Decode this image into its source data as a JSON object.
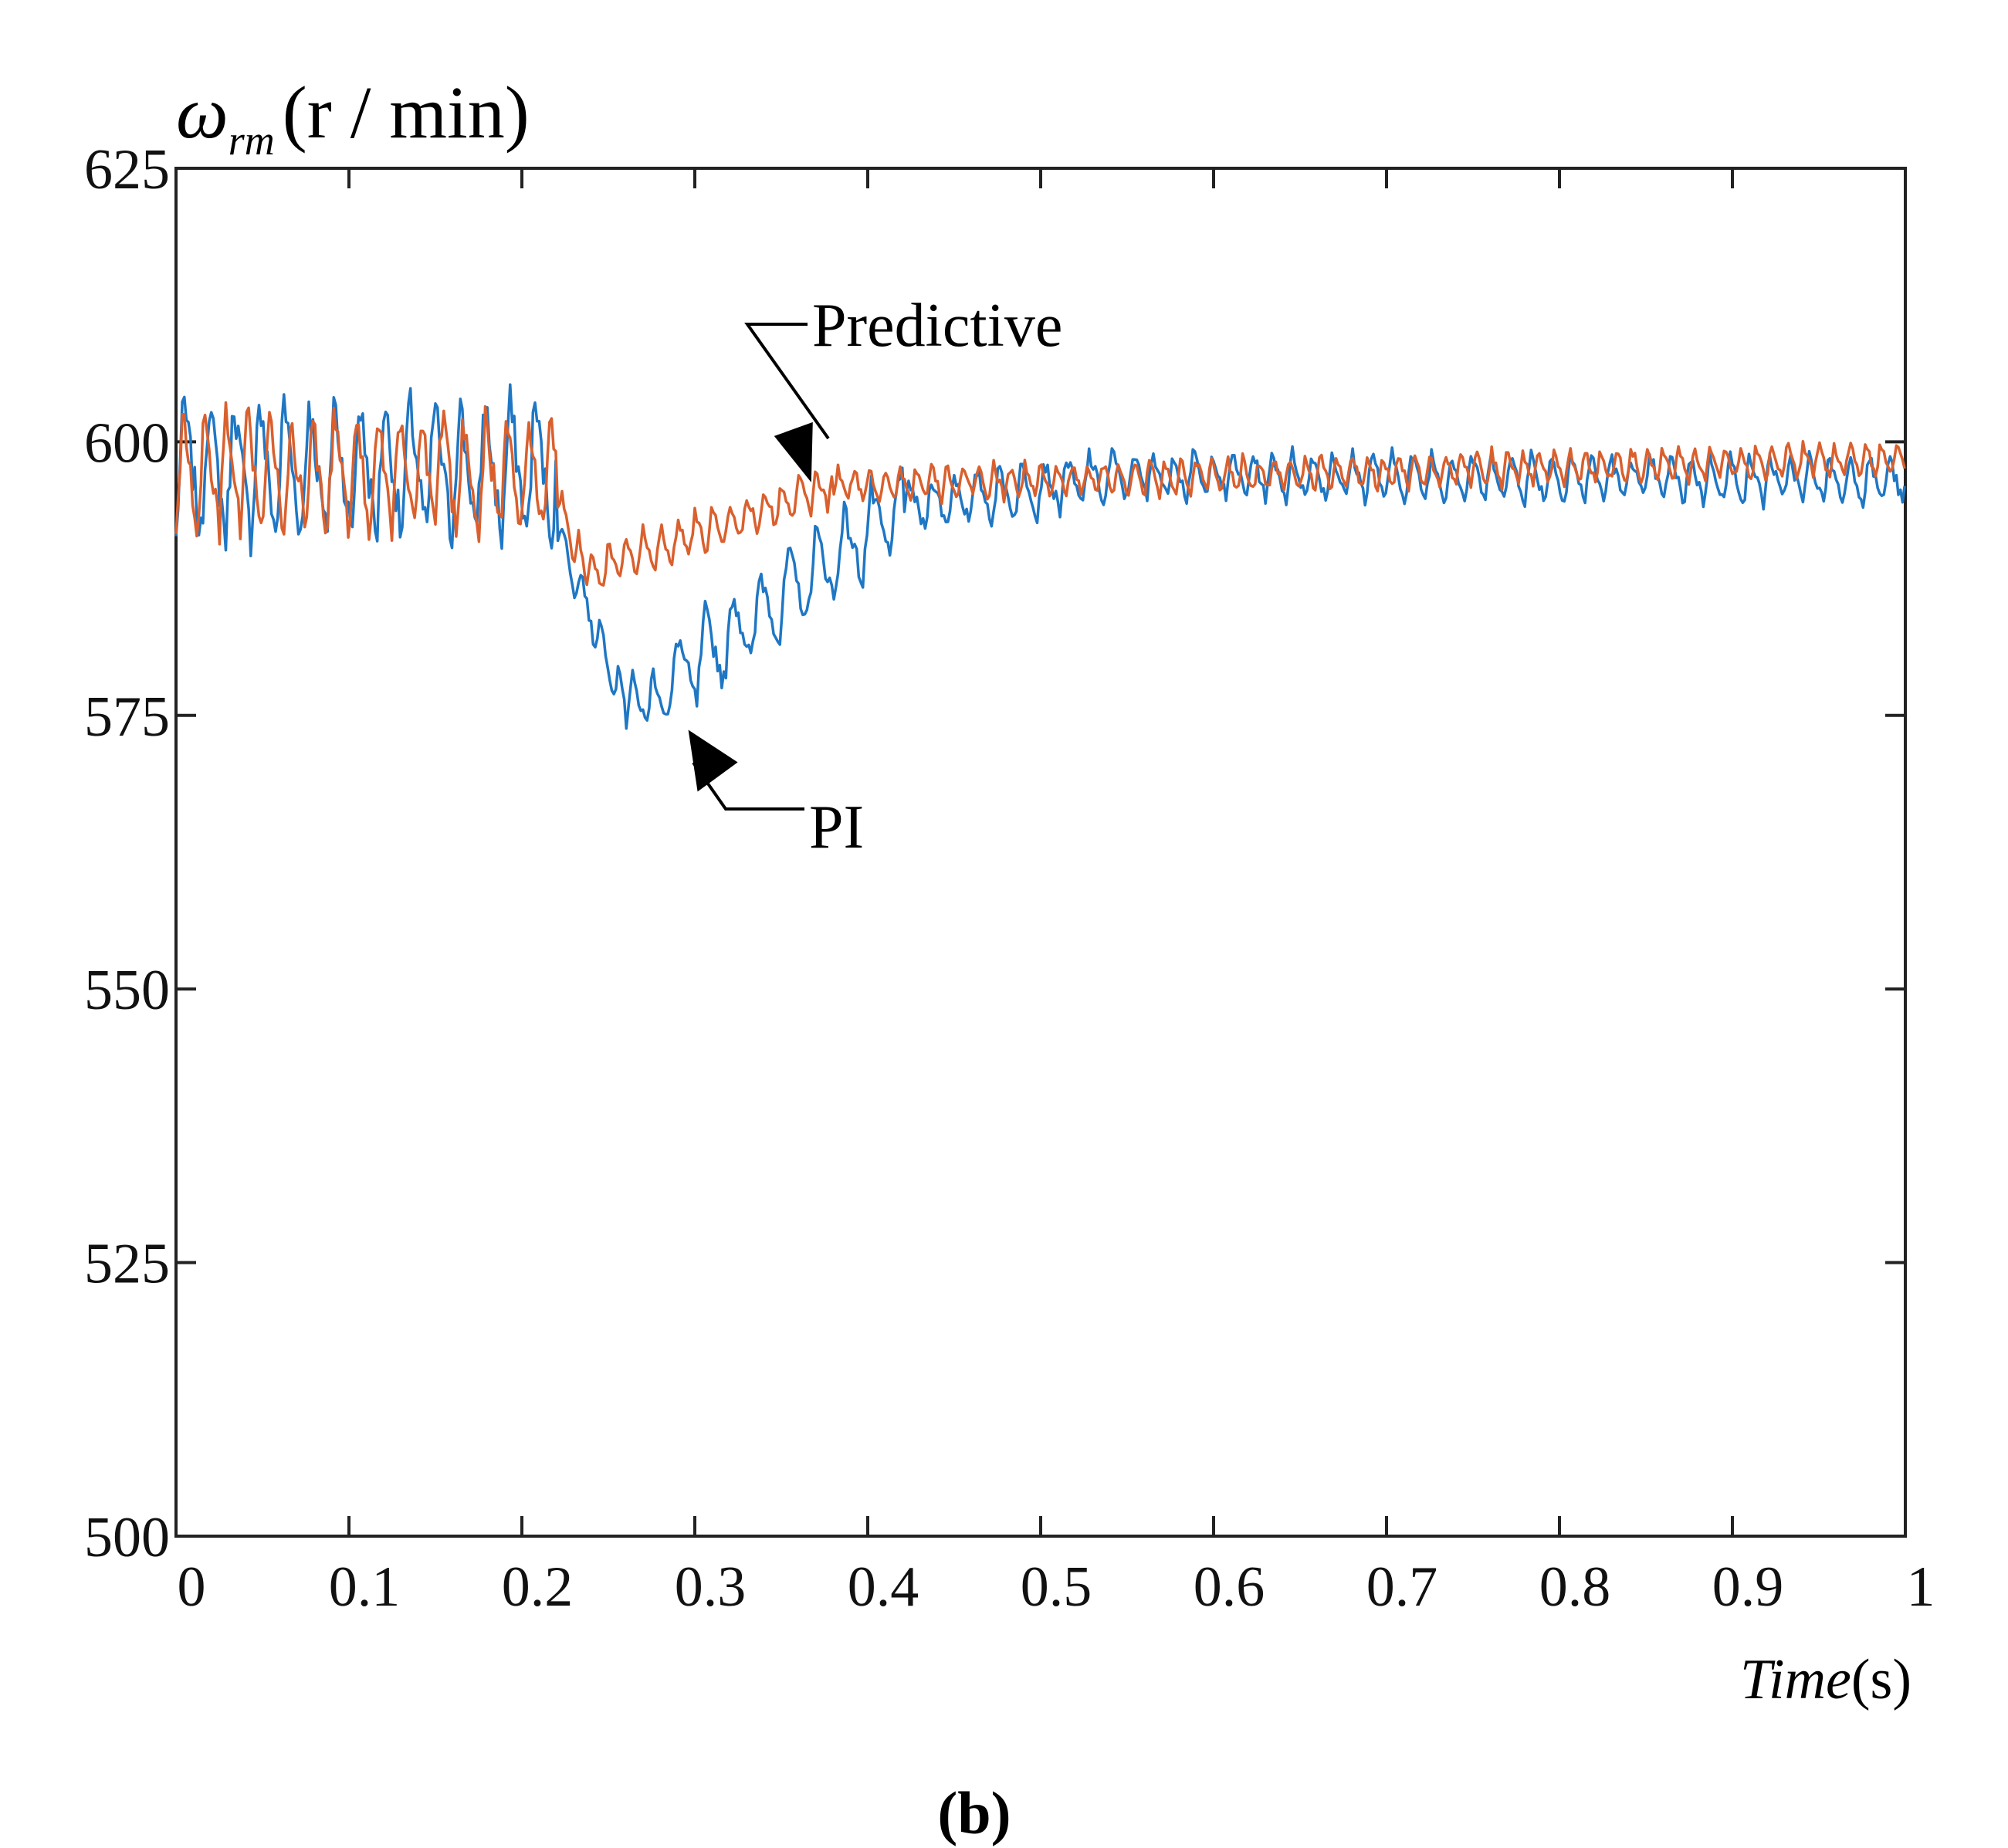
{
  "chart_data": {
    "type": "line",
    "title": "",
    "ylabel": {
      "symbol": "ω",
      "subscript": "rm",
      "units": "(r / min)"
    },
    "xlabel": {
      "italic": "Time",
      "units": "(s)"
    },
    "xlim": [
      0,
      1
    ],
    "ylim": [
      500,
      625
    ],
    "xticks": [
      0,
      0.1,
      0.2,
      0.3,
      0.4,
      0.5,
      0.6,
      0.7,
      0.8,
      0.9,
      1
    ],
    "xtick_labels": [
      "0",
      "0.1",
      "0.2",
      "0.3",
      "0.4",
      "0.5",
      "0.6",
      "0.7",
      "0.8",
      "0.9",
      "1"
    ],
    "yticks": [
      500,
      525,
      550,
      575,
      600,
      625
    ],
    "ytick_labels": [
      "500",
      "525",
      "550",
      "575",
      "600",
      "625"
    ],
    "grid": false,
    "series": [
      {
        "name": "PI",
        "color": "#1f77c4",
        "model": {
          "phases": [
            {
              "t0": 0.0,
              "t1": 0.22,
              "start": 597.5,
              "end": 597.5,
              "amp": 6.5,
              "period": 0.0145
            },
            {
              "t0": 0.22,
              "t1": 0.26,
              "start": 592.0,
              "end": 576.0,
              "amp": 2.0,
              "period": 0.011
            },
            {
              "t0": 0.26,
              "t1": 0.285,
              "start": 576.0,
              "end": 577.0,
              "amp": 2.5,
              "period": 0.012
            },
            {
              "t0": 0.285,
              "t1": 0.42,
              "start": 578.0,
              "end": 594.0,
              "amp": 4.0,
              "period": 0.016
            },
            {
              "t0": 0.42,
              "t1": 0.55,
              "start": 594.0,
              "end": 597.0,
              "amp": 2.5,
              "period": 0.013
            },
            {
              "t0": 0.55,
              "t1": 1.0,
              "start": 597.0,
              "end": 596.5,
              "amp": 2.2,
              "period": 0.0115
            }
          ]
        }
      },
      {
        "name": "Predictive",
        "color": "#d9602e",
        "model": {
          "phases": [
            {
              "t0": 0.0,
              "t1": 0.22,
              "start": 597.0,
              "end": 597.0,
              "amp": 5.5,
              "period": 0.0125
            },
            {
              "t0": 0.22,
              "t1": 0.237,
              "start": 595.0,
              "end": 588.0,
              "amp": 2.0,
              "period": 0.01
            },
            {
              "t0": 0.237,
              "t1": 0.38,
              "start": 588.0,
              "end": 596.0,
              "amp": 2.0,
              "period": 0.01
            },
            {
              "t0": 0.38,
              "t1": 1.0,
              "start": 596.0,
              "end": 598.5,
              "amp": 1.6,
              "period": 0.009
            }
          ]
        }
      }
    ],
    "annotations": [
      {
        "text": "Predictive",
        "series": "Predictive",
        "at": [
          0.37,
          597.0
        ]
      },
      {
        "text": "PI",
        "series": "PI",
        "at": [
          0.29,
          576.5
        ]
      }
    ],
    "caption": "(b)"
  }
}
